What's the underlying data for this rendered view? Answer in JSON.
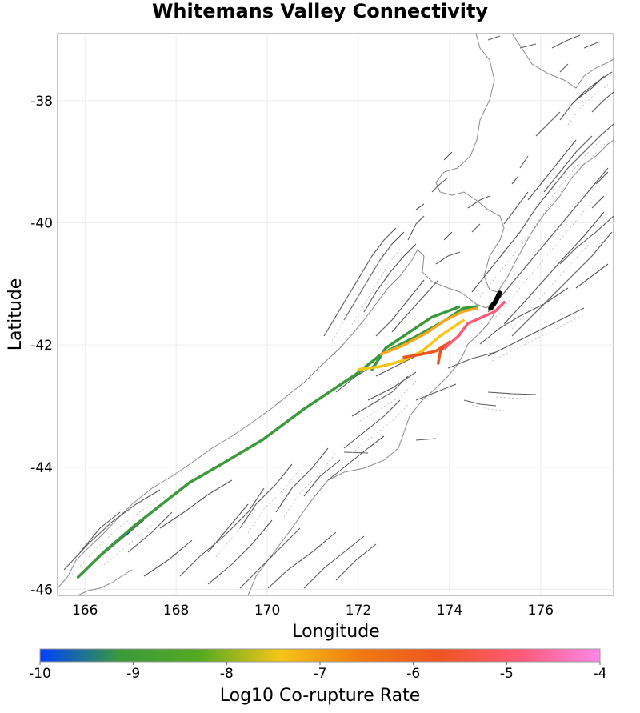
{
  "chart_data": {
    "type": "map",
    "title": "Whitemans Valley Connectivity",
    "xlabel": "Longitude",
    "ylabel": "Latitude",
    "xlim": [
      165.4,
      177.6
    ],
    "ylim": [
      -46.1,
      -36.9
    ],
    "x_ticks": [
      166,
      168,
      170,
      172,
      174,
      176
    ],
    "y_ticks": [
      -38,
      -40,
      -42,
      -44,
      -46
    ],
    "x_tick_labels": [
      "166",
      "168",
      "170",
      "172",
      "174",
      "176"
    ],
    "y_tick_labels": [
      "-38",
      "-40",
      "-42",
      "-44",
      "-46"
    ],
    "grid": true,
    "colorbar": {
      "label": "Log10 Co-rupture Rate",
      "min": -10,
      "max": -4,
      "ticks": [
        -10,
        -9,
        -8,
        -7,
        -6,
        -5,
        -4
      ],
      "tick_labels": [
        "-10",
        "-9",
        "-8",
        "-7",
        "-6",
        "-5",
        "-4"
      ],
      "colors": [
        "#0040ff",
        "#3a9a3a",
        "#55aa22",
        "#f5c518",
        "#f07a10",
        "#ee5522",
        "#ff5a78",
        "#ff88e8"
      ]
    },
    "source_fault": {
      "name": "Whitemans Valley",
      "color": "#000000",
      "trace": [
        [
          174.9,
          -41.4
        ],
        [
          175.0,
          -41.3
        ],
        [
          175.1,
          -41.15
        ]
      ]
    },
    "ruptures": [
      {
        "log10_rate": -9.9,
        "color": "#0040ff",
        "trace": [
          [
            166.9,
            -45.1
          ],
          [
            167.0,
            -45.03
          ]
        ]
      },
      {
        "log10_rate": -8.7,
        "color": "#3a9a3a",
        "trace": [
          [
            165.85,
            -45.8
          ],
          [
            166.4,
            -45.4
          ],
          [
            167.1,
            -44.95
          ],
          [
            167.7,
            -44.6
          ],
          [
            168.3,
            -44.25
          ],
          [
            169.0,
            -43.95
          ],
          [
            169.9,
            -43.55
          ],
          [
            170.8,
            -43.05
          ],
          [
            171.4,
            -42.75
          ],
          [
            172.0,
            -42.45
          ],
          [
            172.5,
            -42.15
          ],
          [
            173.3,
            -41.85
          ],
          [
            173.9,
            -41.6
          ],
          [
            174.3,
            -41.4
          ],
          [
            174.6,
            -41.37
          ]
        ]
      },
      {
        "log10_rate": -8.6,
        "color": "#3a9a3a",
        "trace": [
          [
            172.3,
            -42.4
          ],
          [
            172.6,
            -42.05
          ],
          [
            173.0,
            -41.85
          ],
          [
            173.6,
            -41.55
          ],
          [
            174.2,
            -41.38
          ]
        ]
      },
      {
        "log10_rate": -7.0,
        "color": "#f5c518",
        "trace": [
          [
            172.0,
            -42.4
          ],
          [
            172.5,
            -42.35
          ],
          [
            173.0,
            -42.25
          ],
          [
            173.4,
            -42.1
          ],
          [
            173.8,
            -41.85
          ],
          [
            174.3,
            -41.6
          ]
        ]
      },
      {
        "log10_rate": -6.6,
        "color": "#f5a623",
        "trace": [
          [
            172.5,
            -42.15
          ],
          [
            173.0,
            -42.0
          ],
          [
            173.5,
            -41.8
          ],
          [
            173.9,
            -41.6
          ],
          [
            174.3,
            -41.45
          ],
          [
            174.6,
            -41.4
          ]
        ]
      },
      {
        "log10_rate": -5.5,
        "color": "#ee5522",
        "trace": [
          [
            173.0,
            -42.2
          ],
          [
            173.4,
            -42.15
          ],
          [
            173.7,
            -42.1
          ],
          [
            173.9,
            -42.0
          ]
        ]
      },
      {
        "log10_rate": -5.3,
        "color": "#ee5522",
        "trace": [
          [
            173.75,
            -42.3
          ],
          [
            173.8,
            -42.1
          ],
          [
            174.0,
            -41.95
          ]
        ]
      },
      {
        "log10_rate": -4.6,
        "color": "#ff5a78",
        "trace": [
          [
            173.9,
            -42.05
          ],
          [
            174.2,
            -41.85
          ],
          [
            174.4,
            -41.65
          ],
          [
            174.7,
            -41.55
          ],
          [
            175.0,
            -41.45
          ],
          [
            175.2,
            -41.3
          ]
        ]
      }
    ]
  }
}
